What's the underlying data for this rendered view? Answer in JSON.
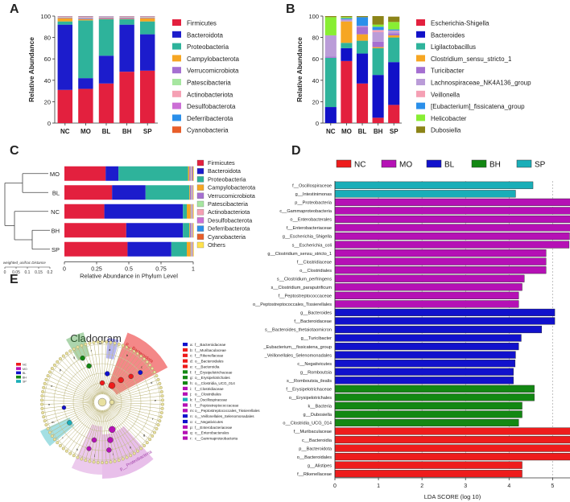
{
  "colors": {
    "phylum": [
      "#e3203e",
      "#1c1ccc",
      "#2eb39b",
      "#f6a623",
      "#a56fd1",
      "#a6e6a0",
      "#f5a0b4",
      "#cc6fd6",
      "#2a8fea",
      "#e85e2a",
      "#8c8418",
      "#ffe24d"
    ],
    "genus": [
      "#e3203e",
      "#1111c8",
      "#2eb39b",
      "#f6a623",
      "#a56fd1",
      "#ba9cd8",
      "#f5a0b4",
      "#2a8fea",
      "#88ee33",
      "#8c8418"
    ],
    "groups": {
      "NC": "#ee1c1c",
      "MO": "#b511b5",
      "BL": "#1111cc",
      "BH": "#138813",
      "SP": "#1aaeb8"
    }
  },
  "chart_data": [
    {
      "panel": "A",
      "type": "bar",
      "stacked": true,
      "ylabel": "Relative Abundance",
      "xlabel": "",
      "ylim": [
        0,
        100
      ],
      "yticks": [
        "0",
        "20",
        "40",
        "60",
        "80",
        "100"
      ],
      "categories": [
        "NC",
        "MO",
        "BL",
        "BH",
        "SP"
      ],
      "series": [
        {
          "name": "Firmicutes",
          "values": [
            31,
            32,
            37,
            48,
            49
          ]
        },
        {
          "name": "Bacteroidota",
          "values": [
            61,
            10,
            26,
            44,
            34
          ]
        },
        {
          "name": "Proteobacteria",
          "values": [
            3,
            54,
            34,
            5,
            12
          ]
        },
        {
          "name": "Campylobacterota",
          "values": [
            3,
            1,
            0.5,
            0.5,
            3
          ]
        },
        {
          "name": "Verrucomicrobiota",
          "values": [
            0.5,
            1,
            1,
            1,
            0.5
          ]
        },
        {
          "name": "Patescibacteria",
          "values": [
            0.5,
            0.5,
            0.5,
            0.5,
            0.5
          ]
        },
        {
          "name": "Actinobacteriota",
          "values": [
            0.3,
            0.5,
            0.4,
            0.3,
            0.3
          ]
        },
        {
          "name": "Desulfobacterota",
          "values": [
            0.3,
            0.4,
            0.3,
            0.3,
            0.3
          ]
        },
        {
          "name": "Deferribacterota",
          "values": [
            0.2,
            0.3,
            0.2,
            0.2,
            0.2
          ]
        },
        {
          "name": "Cyanobacteria",
          "values": [
            0.2,
            0.3,
            0.1,
            0.2,
            0.2
          ]
        }
      ]
    },
    {
      "panel": "B",
      "type": "bar",
      "stacked": true,
      "ylabel": "Relative Abundance",
      "xlabel": "",
      "ylim": [
        0,
        100
      ],
      "yticks": [
        "0",
        "20",
        "40",
        "60",
        "80",
        "100"
      ],
      "categories": [
        "NC",
        "MO",
        "BL",
        "BH",
        "SP"
      ],
      "series": [
        {
          "name": "Escherichia-Shigella",
          "values": [
            0,
            58,
            37,
            5,
            17
          ]
        },
        {
          "name": "Bacteroides",
          "values": [
            15,
            12,
            28,
            40,
            40
          ]
        },
        {
          "name": "Ligilactobacillus",
          "values": [
            46,
            5,
            12,
            25,
            23
          ]
        },
        {
          "name": "Clostridium_sensu_stricto_1",
          "values": [
            0,
            20,
            6,
            1,
            2
          ]
        },
        {
          "name": "Turicibacter",
          "values": [
            1,
            0,
            7,
            5,
            2
          ]
        },
        {
          "name": "Lachnospiraceae_NK4A136_group",
          "values": [
            20,
            2,
            1,
            9,
            2
          ]
        },
        {
          "name": "Veillonella",
          "values": [
            0,
            0,
            0,
            2,
            0.5
          ]
        },
        {
          "name": "[Eubacterium]_fissicatena_group",
          "values": [
            0,
            1,
            8,
            3,
            1
          ]
        },
        {
          "name": "Helicobacter",
          "values": [
            17,
            1,
            0,
            2,
            7
          ]
        },
        {
          "name": "Dubosiella",
          "values": [
            1,
            1,
            1,
            8,
            5
          ]
        }
      ]
    },
    {
      "panel": "C",
      "type": "bar",
      "stacked": true,
      "orientation": "horizontal",
      "xlabel": "Relative Abundance in Phylum Level",
      "xticks": [
        "0",
        "0.25",
        "0.5",
        "0.75",
        "1"
      ],
      "xlim": [
        0,
        1
      ],
      "categories": [
        "MO",
        "BL",
        "NC",
        "BH",
        "SP"
      ],
      "dendrogram_title": "weighted_unifrac Distance",
      "dendrogram_ticks": [
        "0",
        "0.05",
        "0.1",
        "0.15",
        "0.2"
      ],
      "series": [
        {
          "name": "Firmicutes",
          "values": [
            0.32,
            0.37,
            0.31,
            0.48,
            0.49
          ]
        },
        {
          "name": "Bacteroidota",
          "values": [
            0.1,
            0.26,
            0.61,
            0.44,
            0.34
          ]
        },
        {
          "name": "Proteobacteria",
          "values": [
            0.54,
            0.34,
            0.03,
            0.05,
            0.12
          ]
        },
        {
          "name": "Campylobacterota",
          "values": [
            0.01,
            0.005,
            0.03,
            0.005,
            0.03
          ]
        },
        {
          "name": "Verrucomicrobiota",
          "values": [
            0.01,
            0.01,
            0.005,
            0.01,
            0.005
          ]
        },
        {
          "name": "Patescibacteria",
          "values": [
            0.005,
            0.005,
            0.005,
            0.005,
            0.005
          ]
        },
        {
          "name": "Actinobacteriota",
          "values": [
            0.005,
            0.004,
            0.003,
            0.003,
            0.003
          ]
        },
        {
          "name": "Desulfobacterota",
          "values": [
            0.004,
            0.003,
            0.003,
            0.003,
            0.003
          ]
        },
        {
          "name": "Deferribacterota",
          "values": [
            0.003,
            0.002,
            0.002,
            0.002,
            0.002
          ]
        },
        {
          "name": "Cyanobacteria",
          "values": [
            0.003,
            0.001,
            0.002,
            0.002,
            0.002
          ]
        },
        {
          "name": "Others",
          "values": [
            0.005,
            0.004,
            0.005,
            0.005,
            0.005
          ]
        }
      ]
    },
    {
      "panel": "D",
      "type": "bar",
      "orientation": "horizontal",
      "xlabel": "LDA SCORE (log 10)",
      "xlim": [
        0,
        5.4
      ],
      "xticks": [
        "0",
        "1",
        "2",
        "3",
        "4",
        "5"
      ],
      "legend": [
        "NC",
        "MO",
        "BL",
        "BH",
        "SP"
      ],
      "rows": [
        {
          "label": "f__Oscillospiraceae",
          "value": 4.55,
          "group": "SP"
        },
        {
          "label": "g__Intestinimonas",
          "value": 4.15,
          "group": "SP"
        },
        {
          "label": "p__Proteobacteria",
          "value": 5.42,
          "group": "MO"
        },
        {
          "label": "c__Gammaproteobacteria",
          "value": 5.41,
          "group": "MO"
        },
        {
          "label": "o__Enterobacterales",
          "value": 5.41,
          "group": "MO"
        },
        {
          "label": "f__Enterobacteriaceae",
          "value": 5.41,
          "group": "MO"
        },
        {
          "label": "g__Escherichia_Shigella",
          "value": 5.39,
          "group": "MO"
        },
        {
          "label": "s__Escherichia_coli",
          "value": 5.38,
          "group": "MO"
        },
        {
          "label": "g__Clostridium_sensu_stricto_1",
          "value": 4.85,
          "group": "MO"
        },
        {
          "label": "f__Clostridiaceae",
          "value": 4.85,
          "group": "MO"
        },
        {
          "label": "o__Clostridiales",
          "value": 4.85,
          "group": "MO"
        },
        {
          "label": "s__Clostridium_perfringens",
          "value": 4.35,
          "group": "MO"
        },
        {
          "label": "s__Clostridium_paraputrificum",
          "value": 4.3,
          "group": "MO"
        },
        {
          "label": "f__Peptostreptococcaceae",
          "value": 4.22,
          "group": "MO"
        },
        {
          "label": "o__Peptostreptococcales_Tissierellales",
          "value": 4.22,
          "group": "MO"
        },
        {
          "label": "g__Bacteroides",
          "value": 5.05,
          "group": "BL"
        },
        {
          "label": "f__Bacteroidaceae",
          "value": 5.05,
          "group": "BL"
        },
        {
          "label": "s__Bacteroides_thetaiotaomicron",
          "value": 4.75,
          "group": "BL"
        },
        {
          "label": "g__Turicibacter",
          "value": 4.28,
          "group": "BL"
        },
        {
          "label": "_Eubacterium__fissicatena_group",
          "value": 4.22,
          "group": "BL"
        },
        {
          "label": "_Veillonellales_Selenomonadales",
          "value": 4.15,
          "group": "BL"
        },
        {
          "label": "c__Negativicutes",
          "value": 4.14,
          "group": "BL"
        },
        {
          "label": "g__Romboutsia",
          "value": 4.1,
          "group": "BL"
        },
        {
          "label": "s__Romboutsia_ilealis",
          "value": 4.1,
          "group": "BL"
        },
        {
          "label": "f__Erysipelotrichaceae",
          "value": 4.58,
          "group": "BH"
        },
        {
          "label": "o__Erysipelotrichales",
          "value": 4.58,
          "group": "BH"
        },
        {
          "label": "k__Bacteria",
          "value": 4.3,
          "group": "BH"
        },
        {
          "label": "g__Dubosiella",
          "value": 4.3,
          "group": "BH"
        },
        {
          "label": "o__Clostridia_UCG_014",
          "value": 4.22,
          "group": "BH"
        },
        {
          "label": "f__Muribaculaceae",
          "value": 5.42,
          "group": "NC"
        },
        {
          "label": "c__Bacteroidia",
          "value": 5.41,
          "group": "NC"
        },
        {
          "label": "p__Bacteroidota",
          "value": 5.41,
          "group": "NC"
        },
        {
          "label": "o__Bacteroidales",
          "value": 5.41,
          "group": "NC"
        },
        {
          "label": "g__Alistipes",
          "value": 4.3,
          "group": "NC"
        },
        {
          "label": "f__Rikenellaceae",
          "value": 4.3,
          "group": "NC"
        }
      ]
    },
    {
      "panel": "E",
      "type": "cladogram",
      "title": "Cladogram",
      "groups": [
        "NC",
        "MO",
        "BL",
        "BH",
        "SP"
      ],
      "legend": [
        {
          "key": "a",
          "name": "f__Bacteroidaceae",
          "group": "BL"
        },
        {
          "key": "b",
          "name": "f__Muribaculaceae",
          "group": "NC"
        },
        {
          "key": "c",
          "name": "f__Rikenellaceae",
          "group": "NC"
        },
        {
          "key": "d",
          "name": "o__Bacteroidales",
          "group": "NC"
        },
        {
          "key": "e",
          "name": "c__Bacteroidia",
          "group": "NC"
        },
        {
          "key": "f",
          "name": "f__Erysipelotrichaceae",
          "group": "BH"
        },
        {
          "key": "g",
          "name": "o__Erysipelotrichales",
          "group": "BH"
        },
        {
          "key": "h",
          "name": "o__Clostridia_UCG_014",
          "group": "BH"
        },
        {
          "key": "i",
          "name": "f__Clostridiaceae",
          "group": "MO"
        },
        {
          "key": "j",
          "name": "o__Clostridiales",
          "group": "MO"
        },
        {
          "key": "k",
          "name": "f__Oscillospiraceae",
          "group": "SP"
        },
        {
          "key": "l",
          "name": "f__Peptostreptococcaceae",
          "group": "MO"
        },
        {
          "key": "m",
          "name": "o__Peptostreptococcales_Tissierellales",
          "group": "MO"
        },
        {
          "key": "n",
          "name": "o__Veillonellales_Selenomonadales",
          "group": "BL"
        },
        {
          "key": "o",
          "name": "c__Negativicutes",
          "group": "BL"
        },
        {
          "key": "p",
          "name": "f__Enterobacteriaceae",
          "group": "MO"
        },
        {
          "key": "q",
          "name": "o__Enterobacterales",
          "group": "MO"
        },
        {
          "key": "r",
          "name": "c__Gammaproteobacteria",
          "group": "MO"
        }
      ],
      "arc_labels": [
        "p__Bacteroidota",
        "p__Proteobacteria"
      ],
      "node_letters": [
        "a",
        "b",
        "c",
        "d",
        "e",
        "f",
        "g",
        "h",
        "i",
        "j",
        "k",
        "l",
        "m",
        "n",
        "o",
        "p",
        "q",
        "r"
      ]
    }
  ],
  "panel_labels": [
    "A",
    "B",
    "C",
    "D",
    "E"
  ]
}
